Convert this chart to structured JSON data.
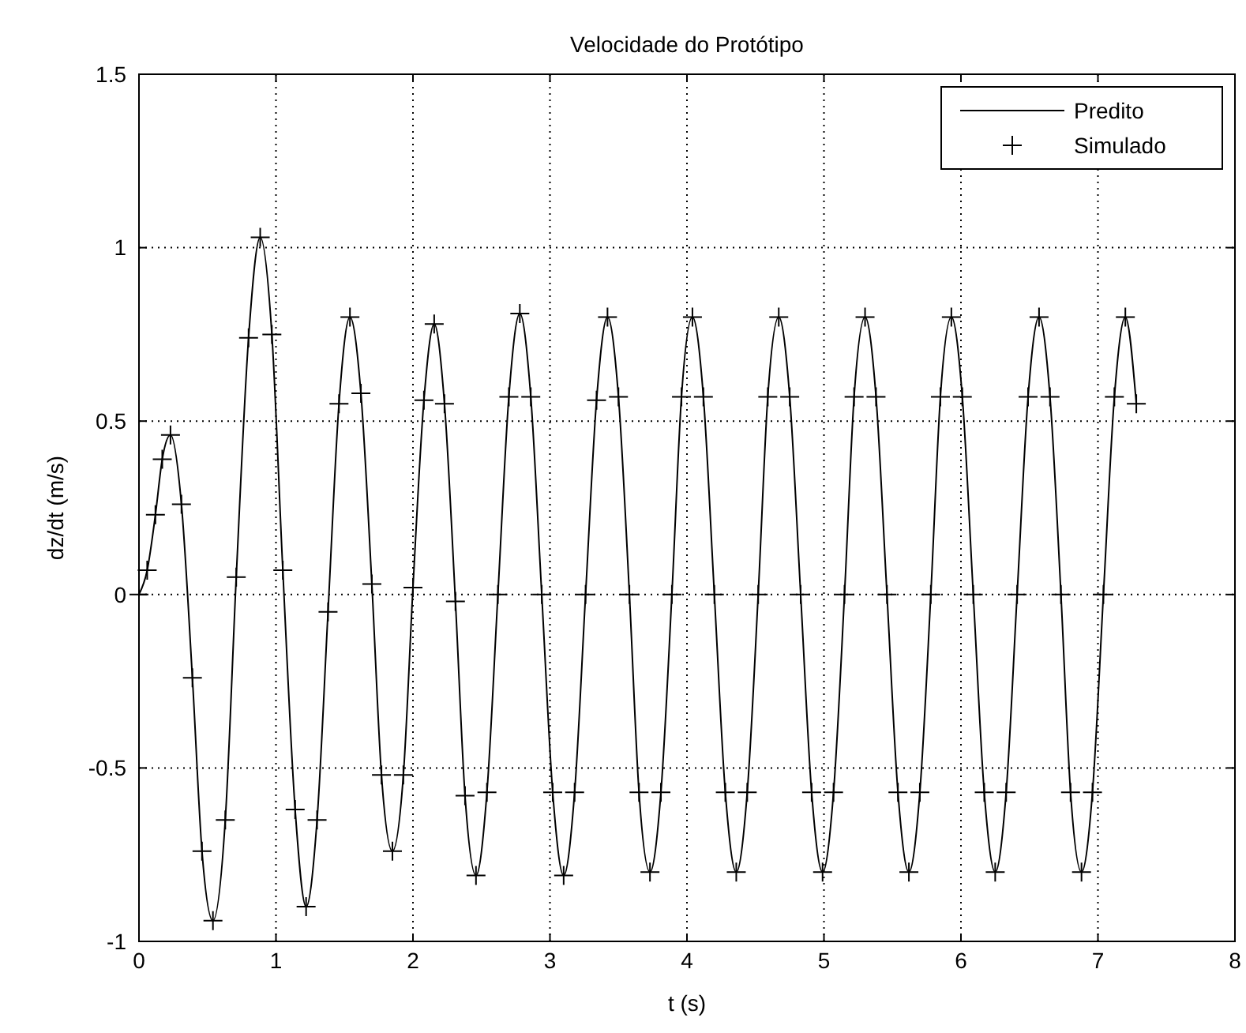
{
  "chart_data": {
    "type": "line",
    "title": "Velocidade do Protótipo",
    "xlabel": "t (s)",
    "ylabel": "dz/dt (m/s)",
    "x": [
      0,
      0.06,
      0.12,
      0.17,
      0.23,
      0.31,
      0.39,
      0.46,
      0.54,
      0.63,
      0.71,
      0.8,
      0.885,
      0.97,
      1.05,
      1.14,
      1.22,
      1.3,
      1.38,
      1.46,
      1.54,
      1.62,
      1.7,
      1.77,
      1.85,
      1.93,
      2.0,
      2.08,
      2.155,
      2.23,
      2.31,
      2.38,
      2.46,
      2.54,
      2.62,
      2.7,
      2.78,
      2.86,
      2.94,
      3.02,
      3.1,
      3.18,
      3.26,
      3.34,
      3.42,
      3.5,
      3.58,
      3.65,
      3.73,
      3.81,
      3.89,
      3.96,
      4.04,
      4.12,
      4.2,
      4.28,
      4.36,
      4.44,
      4.52,
      4.59,
      4.67,
      4.75,
      4.83,
      4.91,
      4.99,
      5.07,
      5.15,
      5.22,
      5.3,
      5.38,
      5.46,
      5.54,
      5.62,
      5.7,
      5.78,
      5.85,
      5.93,
      6.01,
      6.09,
      6.17,
      6.25,
      6.33,
      6.41,
      6.49,
      6.57,
      6.65,
      6.73,
      6.8,
      6.88,
      6.96,
      7.04,
      7.12,
      7.2,
      7.28
    ],
    "series": [
      {
        "name": "Predito",
        "type": "line",
        "color": "#000000",
        "marker": "none",
        "line_style": "solid",
        "values": [
          0,
          0.07,
          0.23,
          0.39,
          0.46,
          0.26,
          -0.24,
          -0.74,
          -0.94,
          -0.65,
          0.05,
          0.74,
          1.03,
          0.75,
          0.07,
          -0.62,
          -0.9,
          -0.65,
          -0.05,
          0.55,
          0.8,
          0.58,
          0.03,
          -0.52,
          -0.74,
          -0.52,
          0.02,
          0.56,
          0.78,
          0.55,
          -0.02,
          -0.58,
          -0.81,
          -0.57,
          0,
          0.57,
          0.81,
          0.57,
          0,
          -0.57,
          -0.81,
          -0.57,
          0,
          0.56,
          0.8,
          0.57,
          0,
          -0.57,
          -0.8,
          -0.57,
          0,
          0.57,
          0.8,
          0.57,
          0,
          -0.57,
          -0.8,
          -0.57,
          0,
          0.57,
          0.8,
          0.57,
          0,
          -0.57,
          -0.8,
          -0.57,
          0,
          0.57,
          0.8,
          0.57,
          0,
          -0.57,
          -0.8,
          -0.57,
          0,
          0.57,
          0.8,
          0.57,
          0,
          -0.57,
          -0.8,
          -0.57,
          0,
          0.57,
          0.8,
          0.57,
          0,
          -0.57,
          -0.8,
          -0.57,
          0,
          0.57,
          0.8,
          0.55
        ]
      },
      {
        "name": "Simulado",
        "type": "scatter",
        "color": "#000000",
        "marker": "cross",
        "values": [
          0,
          0.07,
          0.23,
          0.39,
          0.46,
          0.26,
          -0.24,
          -0.74,
          -0.94,
          -0.65,
          0.05,
          0.74,
          1.03,
          0.75,
          0.07,
          -0.62,
          -0.9,
          -0.65,
          -0.05,
          0.55,
          0.8,
          0.58,
          0.03,
          -0.52,
          -0.74,
          -0.52,
          0.02,
          0.56,
          0.78,
          0.55,
          -0.02,
          -0.58,
          -0.81,
          -0.57,
          0,
          0.57,
          0.81,
          0.57,
          0,
          -0.57,
          -0.81,
          -0.57,
          0,
          0.56,
          0.8,
          0.57,
          0,
          -0.57,
          -0.8,
          -0.57,
          0,
          0.57,
          0.8,
          0.57,
          0,
          -0.57,
          -0.8,
          -0.57,
          0,
          0.57,
          0.8,
          0.57,
          0,
          -0.57,
          -0.8,
          -0.57,
          0,
          0.57,
          0.8,
          0.57,
          0,
          -0.57,
          -0.8,
          -0.57,
          0,
          0.57,
          0.8,
          0.57,
          0,
          -0.57,
          -0.8,
          -0.57,
          0,
          0.57,
          0.8,
          0.57,
          0,
          -0.57,
          -0.8,
          -0.57,
          0,
          0.57,
          0.8,
          0.55
        ]
      }
    ],
    "xlim": [
      0,
      8
    ],
    "xticks": [
      0,
      1,
      2,
      3,
      4,
      5,
      6,
      7,
      8
    ],
    "ylim": [
      -1,
      1.5
    ],
    "yticks": [
      -1,
      -0.5,
      0,
      0.5,
      1,
      1.5
    ],
    "grid": true,
    "legend": "top right"
  }
}
